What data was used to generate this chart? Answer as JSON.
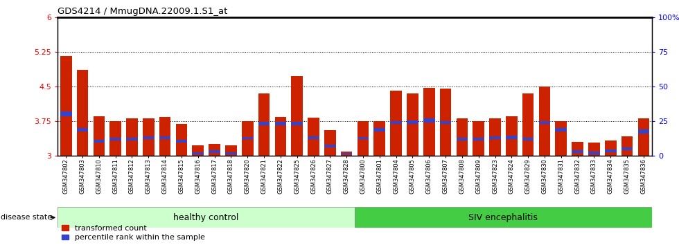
{
  "title": "GDS4214 / MmugDNA.22009.1.S1_at",
  "samples": [
    "GSM347802",
    "GSM347803",
    "GSM347810",
    "GSM347811",
    "GSM347812",
    "GSM347813",
    "GSM347814",
    "GSM347815",
    "GSM347816",
    "GSM347817",
    "GSM347818",
    "GSM347820",
    "GSM347821",
    "GSM347822",
    "GSM347825",
    "GSM347826",
    "GSM347827",
    "GSM347828",
    "GSM347800",
    "GSM347801",
    "GSM347804",
    "GSM347805",
    "GSM347806",
    "GSM347807",
    "GSM347808",
    "GSM347809",
    "GSM347823",
    "GSM347824",
    "GSM347829",
    "GSM347830",
    "GSM347831",
    "GSM347832",
    "GSM347833",
    "GSM347834",
    "GSM347835",
    "GSM347836"
  ],
  "red_values": [
    5.15,
    4.85,
    3.85,
    3.75,
    3.8,
    3.8,
    3.83,
    3.68,
    3.22,
    3.25,
    3.22,
    3.75,
    4.35,
    3.83,
    4.72,
    3.82,
    3.55,
    3.08,
    3.75,
    3.75,
    4.4,
    4.35,
    4.47,
    4.45,
    3.8,
    3.75,
    3.8,
    3.85,
    4.35,
    4.5,
    3.75,
    3.3,
    3.28,
    3.32,
    3.42,
    3.8
  ],
  "blue_heights": [
    0.1,
    0.08,
    0.06,
    0.07,
    0.07,
    0.07,
    0.06,
    0.06,
    0.04,
    0.05,
    0.04,
    0.05,
    0.08,
    0.08,
    0.08,
    0.06,
    0.06,
    0.03,
    0.05,
    0.08,
    0.06,
    0.08,
    0.08,
    0.06,
    0.06,
    0.06,
    0.06,
    0.08,
    0.06,
    0.06,
    0.08,
    0.06,
    0.06,
    0.06,
    0.06,
    0.08
  ],
  "blue_bottoms": [
    3.85,
    3.52,
    3.28,
    3.32,
    3.32,
    3.35,
    3.35,
    3.28,
    3.03,
    3.06,
    3.03,
    3.35,
    3.65,
    3.65,
    3.65,
    3.35,
    3.18,
    3.02,
    3.35,
    3.52,
    3.68,
    3.68,
    3.72,
    3.68,
    3.32,
    3.32,
    3.35,
    3.35,
    3.32,
    3.68,
    3.52,
    3.05,
    3.02,
    3.07,
    3.12,
    3.48
  ],
  "healthy_count": 18,
  "base": 3.0,
  "ylim_left": [
    3.0,
    6.0
  ],
  "ylim_right": [
    0,
    100
  ],
  "yticks_left": [
    3.0,
    3.75,
    4.5,
    5.25,
    6.0
  ],
  "ytick_labels_left": [
    "3",
    "3.75",
    "4.5",
    "5.25",
    "6"
  ],
  "yticks_right": [
    0,
    25,
    50,
    75,
    100
  ],
  "ytick_labels_right": [
    "0",
    "25",
    "50",
    "75",
    "100%"
  ],
  "hlines": [
    3.75,
    4.5,
    5.25
  ],
  "bar_color": "#CC2200",
  "blue_color": "#3344CC",
  "healthy_color": "#CCFFCC",
  "siv_color": "#44CC44",
  "healthy_label": "healthy control",
  "siv_label": "SIV encephalitis",
  "disease_state_label": "disease state",
  "legend_red": "transformed count",
  "legend_blue": "percentile rank within the sample",
  "plot_bg": "#FFFFFF",
  "tick_area_bg": "#DDDDDD"
}
